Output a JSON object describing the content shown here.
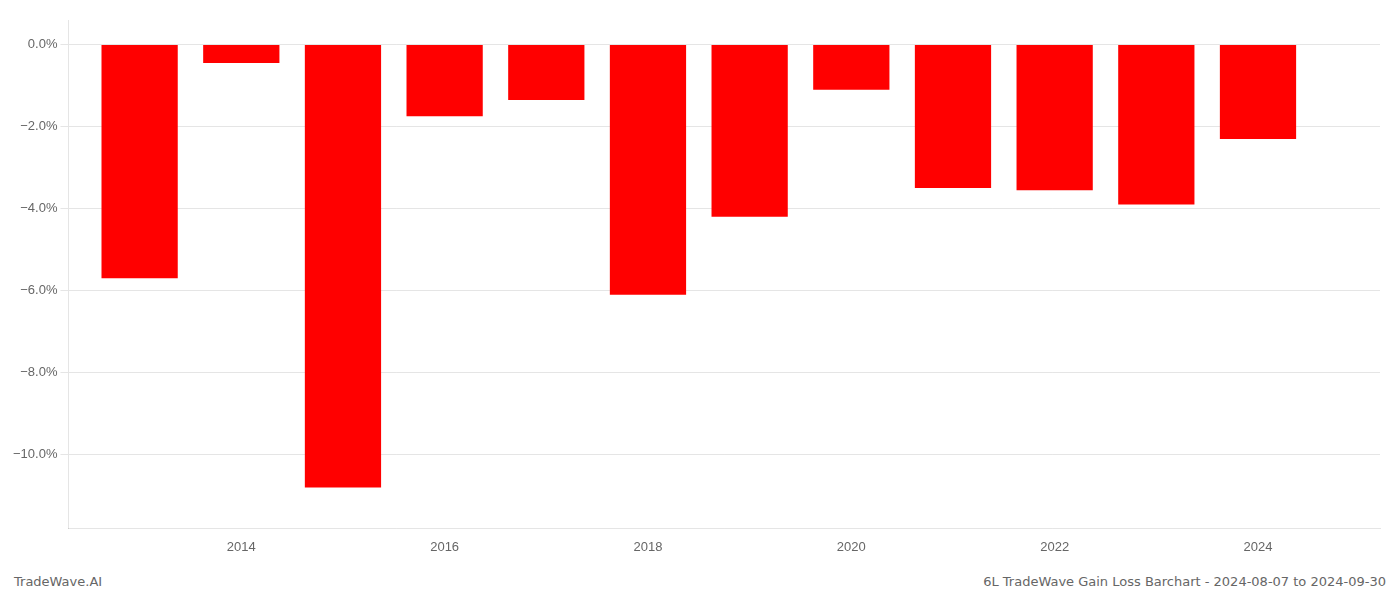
{
  "chart_data": {
    "type": "bar",
    "x": [
      2013,
      2014,
      2015,
      2016,
      2017,
      2018,
      2019,
      2020,
      2021,
      2022,
      2023,
      2024
    ],
    "values": [
      -5.7,
      -0.45,
      -10.8,
      -1.75,
      -1.35,
      -6.1,
      -4.2,
      -1.1,
      -3.5,
      -3.55,
      -3.9,
      -2.3
    ],
    "color": "#ff0000",
    "xlim": [
      2012.3,
      2025.2
    ],
    "xticks": [
      2014,
      2016,
      2018,
      2020,
      2022,
      2024
    ],
    "ylim": [
      -11.8,
      0.6
    ],
    "yticks": [
      {
        "value": 0.0,
        "label": "0.0%"
      },
      {
        "value": -2.0,
        "label": "−2.0%"
      },
      {
        "value": -4.0,
        "label": "−4.0%"
      },
      {
        "value": -6.0,
        "label": "−6.0%"
      },
      {
        "value": -8.0,
        "label": "−8.0%"
      },
      {
        "value": -10.0,
        "label": "−10.0%"
      }
    ],
    "grid": true,
    "annotations": [
      "TradeWave.AI",
      "6L TradeWave Gain Loss Barchart - 2024-08-07 to 2024-09-30"
    ]
  }
}
